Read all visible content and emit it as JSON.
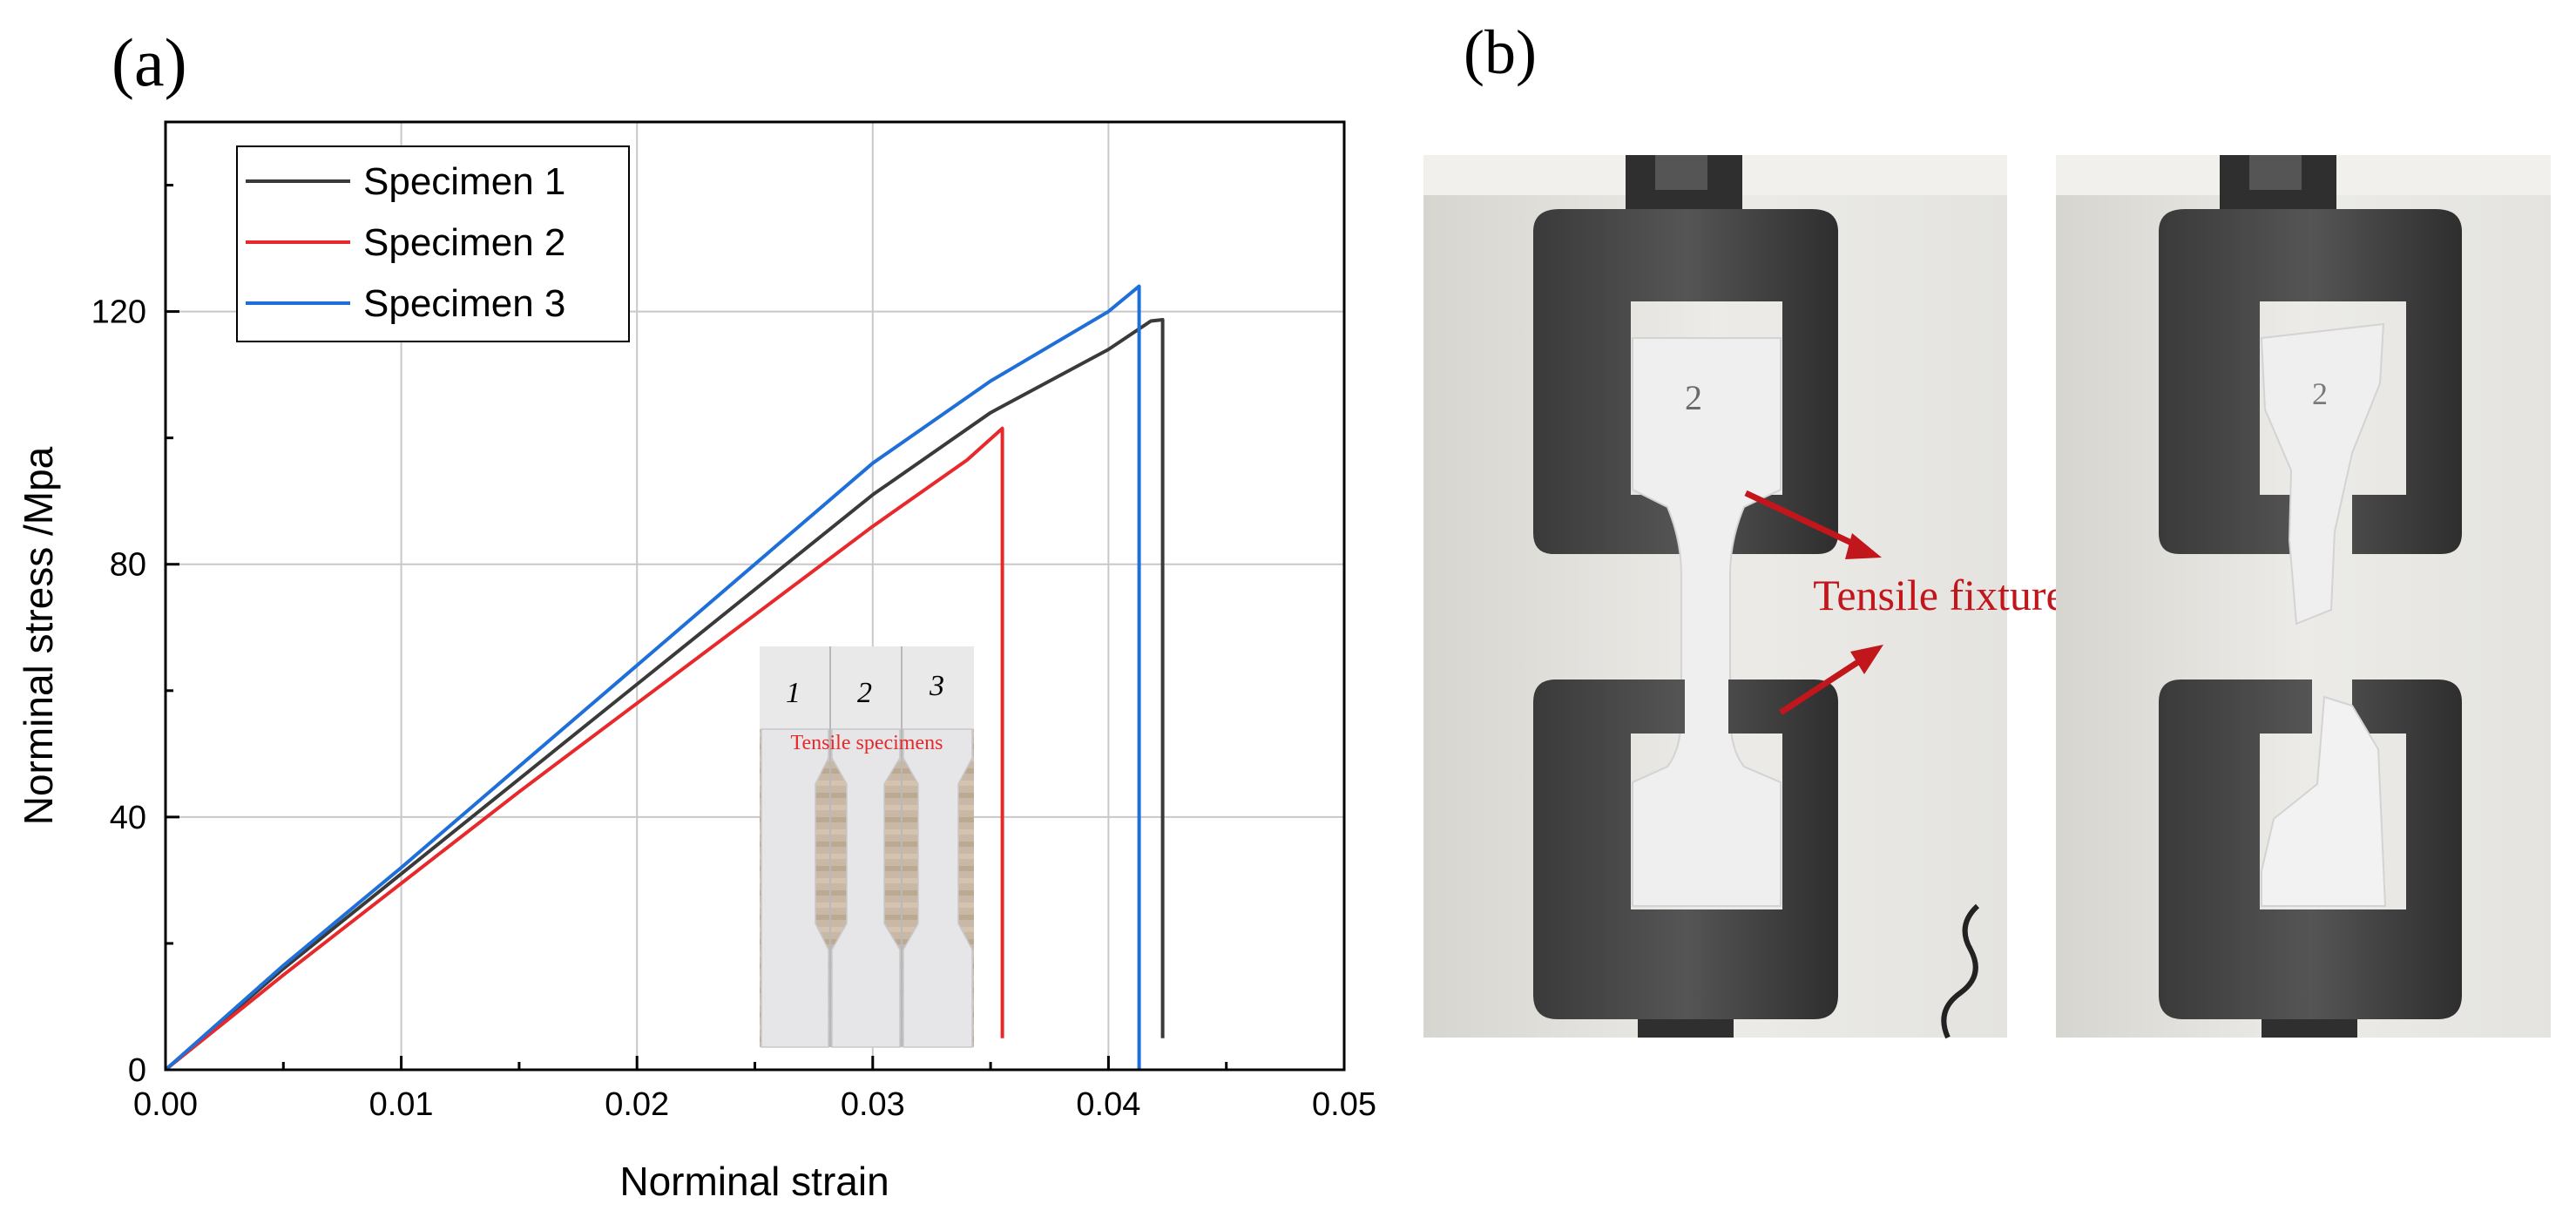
{
  "figure": {
    "panel_a_label": "(a)",
    "panel_b_label": "(b)"
  },
  "chart_data": {
    "type": "line",
    "title": "",
    "xlabel": "Norminal strain",
    "ylabel": "Norminal stress /Mpa",
    "xlim": [
      0,
      0.05
    ],
    "ylim": [
      0,
      150
    ],
    "xticks": [
      0.0,
      0.01,
      0.02,
      0.03,
      0.04,
      0.05
    ],
    "xtick_labels": [
      "0.00",
      "0.01",
      "0.02",
      "0.03",
      "0.04",
      "0.05"
    ],
    "yticks": [
      0,
      40,
      80,
      120
    ],
    "ytick_labels": [
      "0",
      "40",
      "80",
      "120"
    ],
    "grid": true,
    "legend_position": "top-left",
    "series": [
      {
        "name": "Specimen 1",
        "color": "#3a3a3a",
        "x": [
          0,
          0.005,
          0.01,
          0.015,
          0.02,
          0.025,
          0.03,
          0.035,
          0.04,
          0.0418,
          0.0423,
          0.0423,
          0.0423
        ],
        "y": [
          0,
          16,
          31,
          46,
          61,
          76,
          91,
          104,
          114,
          118.5,
          118.7,
          58,
          5
        ]
      },
      {
        "name": "Specimen 2",
        "color": "#e8292b",
        "x": [
          0,
          0.005,
          0.01,
          0.015,
          0.02,
          0.025,
          0.03,
          0.034,
          0.0355,
          0.0355
        ],
        "y": [
          0,
          15,
          29.5,
          44,
          58,
          72,
          86,
          96.5,
          101.5,
          5
        ]
      },
      {
        "name": "Specimen 3",
        "color": "#1f6fd8",
        "x": [
          0,
          0.005,
          0.01,
          0.015,
          0.02,
          0.025,
          0.03,
          0.035,
          0.04,
          0.0413,
          0.0413
        ],
        "y": [
          0,
          16.5,
          32,
          48,
          64,
          80,
          96,
          109,
          120,
          124,
          0
        ]
      }
    ]
  },
  "inset": {
    "labels": [
      "1",
      "2",
      "3"
    ],
    "caption": "Tensile specimens"
  },
  "photo": {
    "specimen_number": "2",
    "annotation": "Tensile fixture",
    "annotation_color": "#c0161c"
  }
}
